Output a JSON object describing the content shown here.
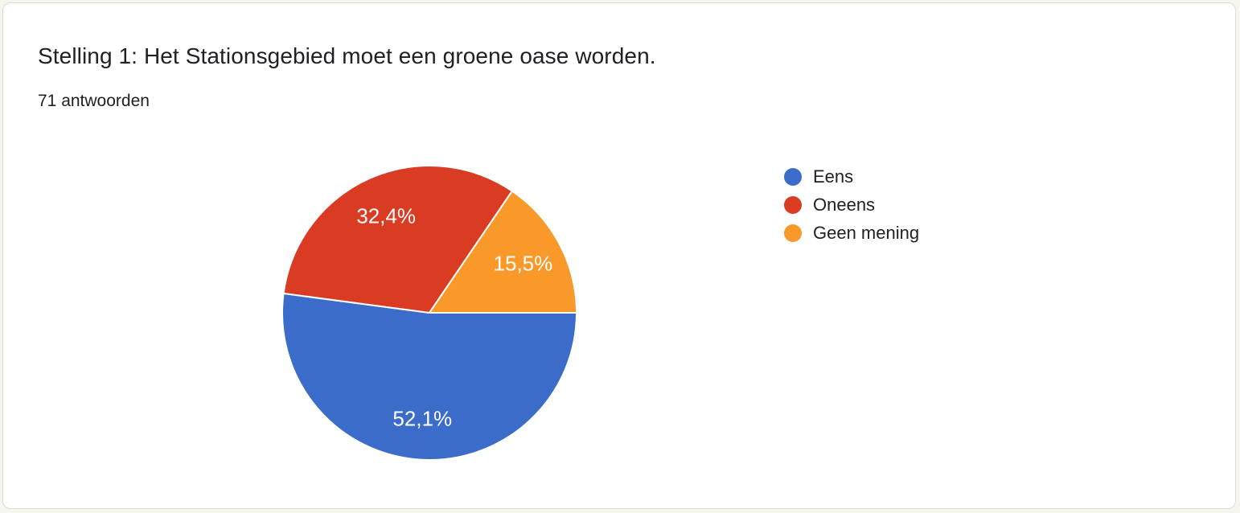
{
  "card": {
    "title": "Stelling 1: Het Stationsgebied moet een groene oase worden.",
    "subtitle": "71 antwoorden"
  },
  "chart_data": {
    "type": "pie",
    "title": "Stelling 1: Het Stationsgebied moet een groene oase worden.",
    "subtitle": "71 antwoorden",
    "labels": [
      "Eens",
      "Oneens",
      "Geen mening"
    ],
    "values": [
      52.1,
      32.4,
      15.5
    ],
    "display_percents": [
      "52,1%",
      "32,4%",
      "15,5%"
    ],
    "colors": [
      "#3B6CCA",
      "#DA3B23",
      "#F8992A"
    ],
    "legend_position": "right",
    "start_angle_deg": 0,
    "direction": "clockwise"
  }
}
